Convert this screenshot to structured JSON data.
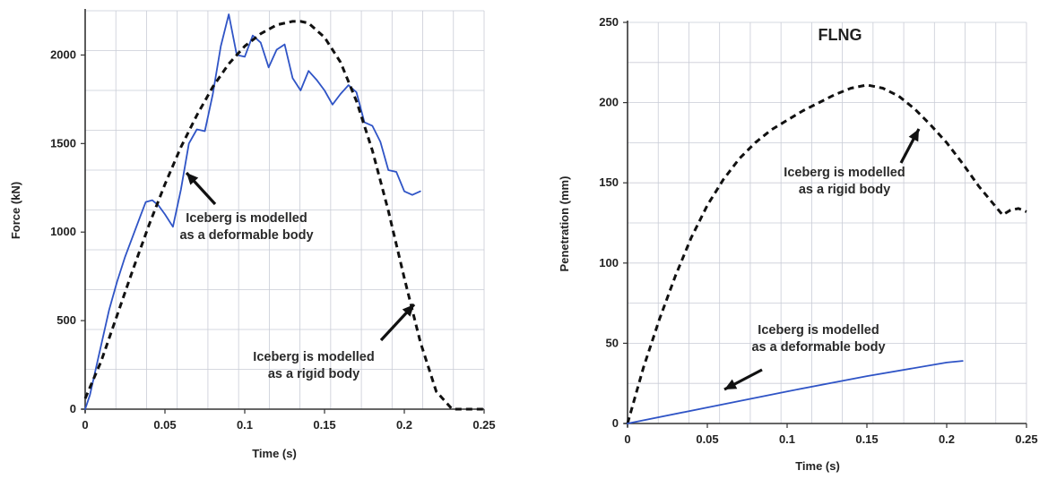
{
  "chart_data": [
    {
      "type": "line",
      "title": "",
      "xlabel": "Time (s)",
      "ylabel": "Force (kN)",
      "xlim": [
        0,
        0.25
      ],
      "ylim": [
        0,
        2250
      ],
      "x_ticks": [
        "0",
        "0.05",
        "0.1",
        "0.15",
        "0.2",
        "0.25"
      ],
      "y_ticks": [
        "0",
        "500",
        "1000",
        "1500",
        "2000"
      ],
      "grid": true,
      "series": [
        {
          "name": "",
          "color": "#2f54c6",
          "style": "solid",
          "x": [
            0,
            0.003,
            0.008,
            0.015,
            0.02,
            0.025,
            0.03,
            0.035,
            0.038,
            0.042,
            0.046,
            0.05,
            0.055,
            0.06,
            0.065,
            0.07,
            0.075,
            0.08,
            0.085,
            0.09,
            0.095,
            0.1,
            0.105,
            0.11,
            0.115,
            0.12,
            0.125,
            0.13,
            0.135,
            0.14,
            0.145,
            0.15,
            0.155,
            0.16,
            0.165,
            0.17,
            0.175,
            0.18,
            0.185,
            0.19,
            0.195,
            0.2,
            0.205,
            0.21
          ],
          "y": [
            0,
            80,
            280,
            560,
            720,
            860,
            980,
            1100,
            1170,
            1180,
            1150,
            1100,
            1030,
            1240,
            1500,
            1580,
            1570,
            1780,
            2050,
            2230,
            2000,
            1990,
            2110,
            2070,
            1930,
            2030,
            2060,
            1870,
            1800,
            1910,
            1860,
            1800,
            1720,
            1780,
            1830,
            1790,
            1620,
            1600,
            1510,
            1350,
            1340,
            1230,
            1210,
            1230
          ]
        },
        {
          "name": "",
          "color": "#111111",
          "style": "dashed",
          "x": [
            0,
            0.01,
            0.02,
            0.03,
            0.04,
            0.05,
            0.06,
            0.07,
            0.08,
            0.09,
            0.1,
            0.11,
            0.12,
            0.13,
            0.135,
            0.14,
            0.15,
            0.16,
            0.17,
            0.18,
            0.19,
            0.2,
            0.21,
            0.22,
            0.23,
            0.24,
            0.25
          ],
          "y": [
            60,
            270,
            530,
            790,
            1040,
            1270,
            1480,
            1660,
            1820,
            1950,
            2050,
            2120,
            2170,
            2190,
            2190,
            2180,
            2100,
            1960,
            1740,
            1460,
            1120,
            740,
            380,
            100,
            0,
            0,
            0
          ]
        }
      ],
      "annotations": [
        {
          "lines": [
            "Iceberg is modelled",
            "as a deformable body"
          ]
        },
        {
          "lines": [
            "Iceberg is modelled",
            "as a rigid body"
          ]
        }
      ]
    },
    {
      "type": "line",
      "title": "FLNG",
      "xlabel": "Time (s)",
      "ylabel": "Penetration (mm)",
      "xlim": [
        0,
        0.25
      ],
      "ylim": [
        0,
        250
      ],
      "x_ticks": [
        "0",
        "0.05",
        "0.1",
        "0.15",
        "0.2",
        "0.25"
      ],
      "y_ticks": [
        "0",
        "50",
        "100",
        "150",
        "200",
        "250"
      ],
      "grid": true,
      "series": [
        {
          "name": "",
          "color": "#111111",
          "style": "dashed",
          "x": [
            0,
            0.01,
            0.02,
            0.03,
            0.04,
            0.05,
            0.06,
            0.07,
            0.08,
            0.09,
            0.1,
            0.11,
            0.12,
            0.13,
            0.14,
            0.15,
            0.16,
            0.17,
            0.18,
            0.19,
            0.2,
            0.21,
            0.22,
            0.23,
            0.235,
            0.24,
            0.245,
            0.25
          ],
          "y": [
            0,
            35,
            65,
            92,
            116,
            136,
            152,
            165,
            175,
            183,
            189,
            195,
            200,
            205,
            209,
            211,
            209,
            204,
            196,
            186,
            175,
            162,
            148,
            136,
            130,
            133,
            134,
            132
          ]
        },
        {
          "name": "",
          "color": "#2f54c6",
          "style": "solid",
          "x": [
            0,
            0.05,
            0.1,
            0.15,
            0.2,
            0.21
          ],
          "y": [
            0,
            10,
            20,
            29.5,
            38,
            39
          ]
        }
      ],
      "annotations": [
        {
          "lines": [
            "Iceberg is modelled",
            "as a rigid body"
          ]
        },
        {
          "lines": [
            "Iceberg is modelled",
            "as a deformable body"
          ]
        }
      ]
    }
  ]
}
